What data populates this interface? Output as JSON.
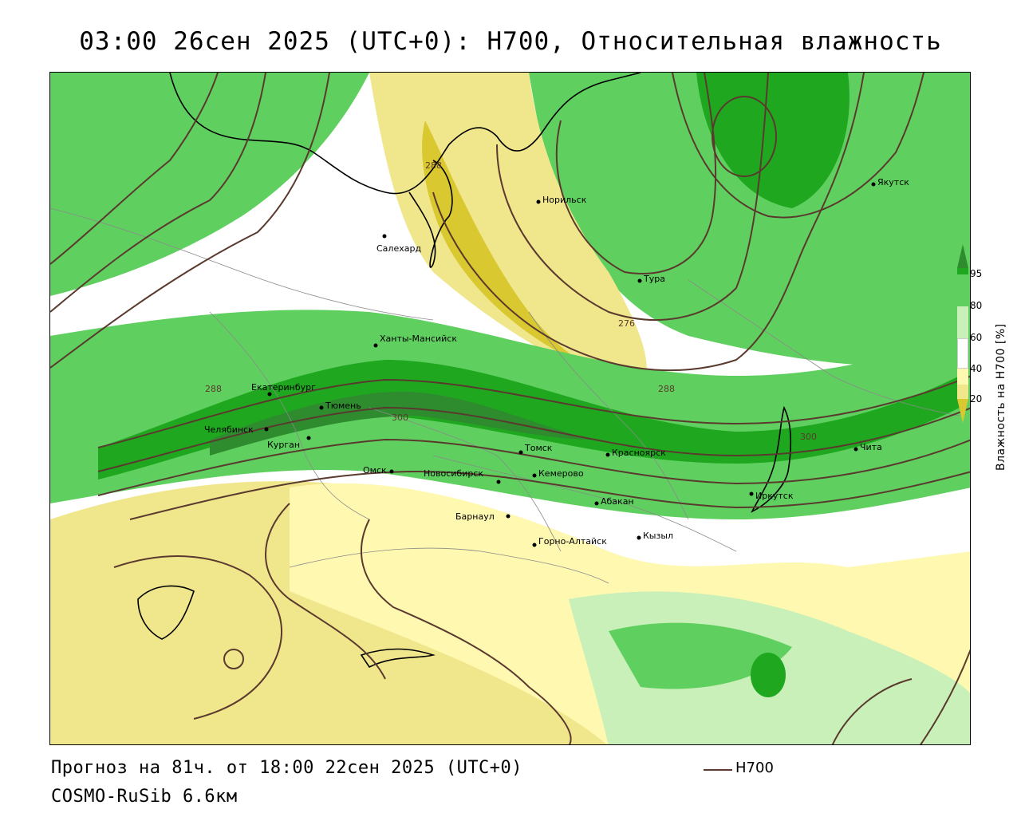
{
  "header": {
    "title": "03:00 26сен 2025 (UTC+0): H700, Относительная влажность"
  },
  "footer": {
    "forecast_line": "Прогноз на 81ч. от 18:00 22сен 2025 (UTC+0)",
    "model_line": "COSMO-RuSib 6.6км"
  },
  "legend": {
    "line_label": "H700",
    "line_color": "#5a3a2e"
  },
  "colorbar": {
    "title": "Влажность на H700 [%]",
    "ticks": [
      "95",
      "80",
      "60",
      "40",
      "20"
    ],
    "colors": {
      "above95": "#2e8b2e",
      "c80_95": "#1fa81f",
      "c60_80": "#5fd05f",
      "c50_60": "#c8f0b8",
      "c40_50": "#ffffff",
      "c30_40": "#fff8b0",
      "c20_30": "#f0e68c",
      "below20": "#d9c830"
    }
  },
  "cities": [
    {
      "name": "Якутск"
    },
    {
      "name": "Норильск"
    },
    {
      "name": "Салехард"
    },
    {
      "name": "Тура"
    },
    {
      "name": "Ханты-Мансийск"
    },
    {
      "name": "Екатеринбург"
    },
    {
      "name": "Тюмень"
    },
    {
      "name": "Челябинск"
    },
    {
      "name": "Курган"
    },
    {
      "name": "Омск"
    },
    {
      "name": "Новосибирск"
    },
    {
      "name": "Томск"
    },
    {
      "name": "Кемерово"
    },
    {
      "name": "Красноярск"
    },
    {
      "name": "Абакан"
    },
    {
      "name": "Барнаул"
    },
    {
      "name": "Горно-Алтайск"
    },
    {
      "name": "Кызыл"
    },
    {
      "name": "Иркутск"
    },
    {
      "name": "Чита"
    }
  ],
  "contour_labels": [
    "288",
    "276",
    "288",
    "288",
    "300",
    "300"
  ]
}
